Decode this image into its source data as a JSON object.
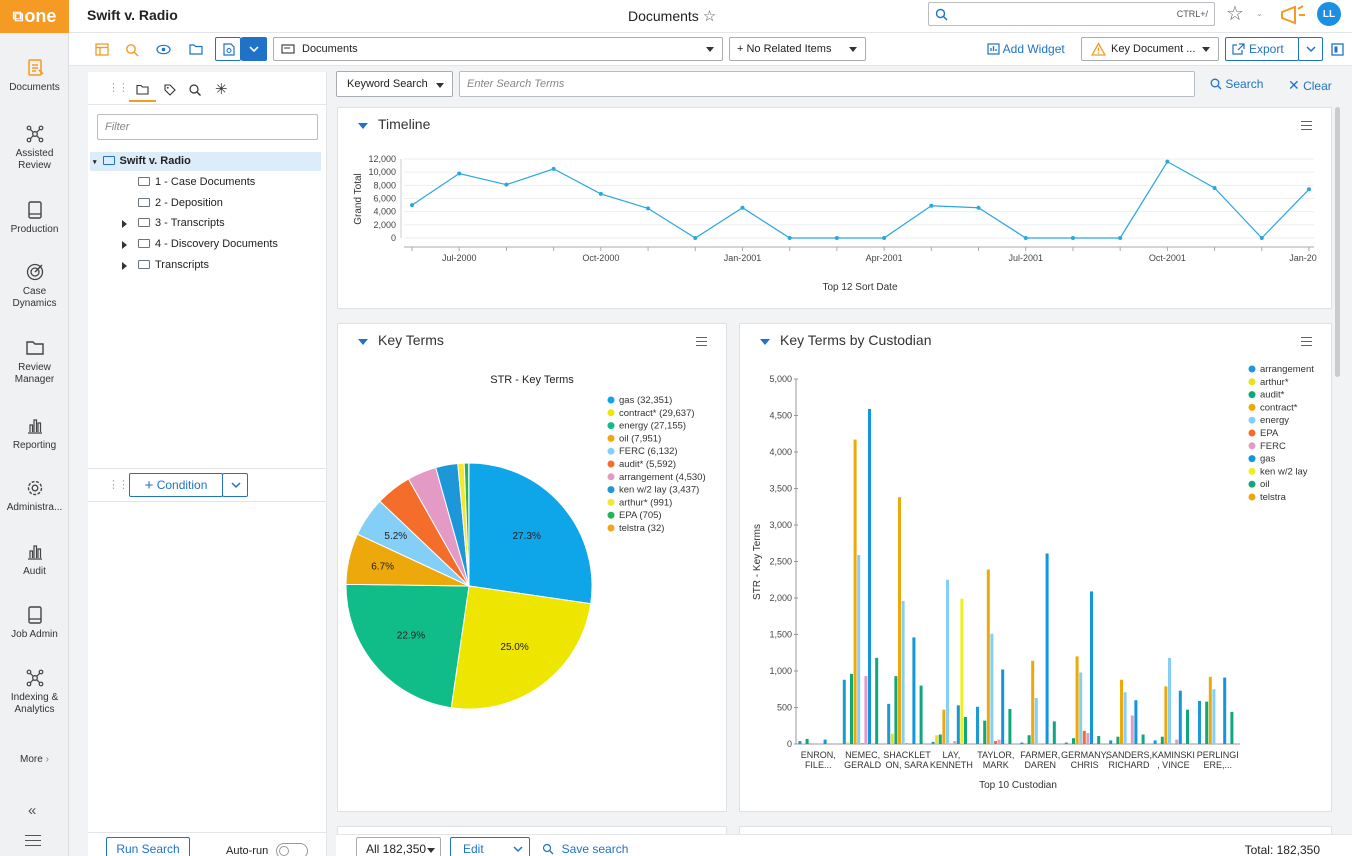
{
  "app": {
    "logo": "one",
    "case_title": "Swift v. Radio",
    "page_title": "Documents",
    "search_shortcut": "CTRL+/",
    "user_initials": "LL"
  },
  "nav": [
    {
      "label": "Documents",
      "icon": "documents-icon"
    },
    {
      "label": "Assisted\nReview",
      "icon": "network-icon"
    },
    {
      "label": "Production",
      "icon": "book-icon"
    },
    {
      "label": "Case\nDynamics",
      "icon": "target-icon"
    },
    {
      "label": "Review\nManager",
      "icon": "folder-icon"
    },
    {
      "label": "Reporting",
      "icon": "bar-chart-icon"
    },
    {
      "label": "Administra...",
      "icon": "gear-icon"
    },
    {
      "label": "Audit",
      "icon": "bar-chart-icon"
    },
    {
      "label": "Job Admin",
      "icon": "book-icon"
    },
    {
      "label": "Indexing &\nAnalytics",
      "icon": "network-icon"
    }
  ],
  "nav_more": "More",
  "toolbar": {
    "view_select": "Documents",
    "related_select": "+ No Related Items",
    "add_widget": "Add Widget",
    "key_document": "Key Document ...",
    "export": "Export"
  },
  "left": {
    "filter_placeholder": "Filter",
    "tree_root": "Swift v. Radio",
    "tree_items": [
      "1 - Case Documents",
      "2 - Deposition",
      "3 - Transcripts",
      "4 - Discovery Documents",
      "Transcripts"
    ],
    "condition": "Condition",
    "run_search": "Run Search",
    "auto_run": "Auto-run"
  },
  "search": {
    "mode": "Keyword Search",
    "placeholder": "Enter Search Terms",
    "search": "Search",
    "clear": "Clear"
  },
  "timeline": {
    "title": "Timeline",
    "ylabel": "Grand Total",
    "xlabel": "Top 12 Sort Date",
    "yticks": [
      "12,000",
      "10,000",
      "8,000",
      "6,000",
      "4,000",
      "2,000",
      "0"
    ],
    "xticks": [
      "Jul-2000",
      "Oct-2000",
      "Jan-2001",
      "Apr-2001",
      "Jul-2001",
      "Oct-2001",
      "Jan-20"
    ]
  },
  "key_terms": {
    "title": "Key Terms",
    "chart_title": "STR - Key Terms",
    "legend": [
      "gas (32,351)",
      "contract* (29,637)",
      "energy (27,155)",
      "oil (7,951)",
      "FERC (6,132)",
      "audit* (5,592)",
      "arrangement (4,530)",
      "ken w/2 lay (3,437)",
      "arthur* (991)",
      "EPA (705)",
      "telstra (32)"
    ],
    "slice_labels": [
      "27.3%",
      "25.0%",
      "22.9%",
      "6.7%",
      "5.2%"
    ]
  },
  "by_custodian": {
    "title": "Key Terms by Custodian",
    "ylabel": "STR - Key Terms",
    "xlabel": "Top 10 Custodian",
    "yticks": [
      "5,000",
      "4,500",
      "4,000",
      "3,500",
      "3,000",
      "2,500",
      "2,000",
      "1,500",
      "1,000",
      "500",
      "0"
    ],
    "categories": [
      [
        "ENRON,",
        "FILE..."
      ],
      [
        "NEMEC,",
        "GERALD"
      ],
      [
        "SHACKLET",
        "ON, SARA"
      ],
      [
        "LAY,",
        "KENNETH"
      ],
      [
        "TAYLOR,",
        "MARK"
      ],
      [
        "FARMER,",
        "DAREN"
      ],
      [
        "GERMANY,",
        "CHRIS"
      ],
      [
        "SANDERS,",
        "RICHARD"
      ],
      [
        "KAMINSKI",
        ", VINCE"
      ],
      [
        "PERLINGI",
        "ERE,..."
      ]
    ],
    "legend": [
      "arrangement",
      "arthur*",
      "audit*",
      "contract*",
      "energy",
      "EPA",
      "FERC",
      "gas",
      "ken w/2 lay",
      "oil",
      "telstra"
    ]
  },
  "bottom": {
    "all": "All 182,350",
    "edit": "Edit",
    "save_search": "Save search",
    "total": "Total: 182,350"
  },
  "chart_data": [
    {
      "type": "line",
      "title": "",
      "xlabel": "Top 12 Sort Date",
      "ylabel": "Grand Total",
      "ylim": [
        0,
        12000
      ],
      "grid": true,
      "x": [
        "Jun-2000",
        "Jul-2000",
        "Aug-2000",
        "Sep-2000",
        "Oct-2000",
        "Nov-2000",
        "Dec-2000",
        "Jan-2001",
        "Feb-2001",
        "Mar-2001",
        "Apr-2001",
        "May-2001",
        "Jun-2001",
        "Jul-2001",
        "Aug-2001",
        "Sep-2001",
        "Oct-2001",
        "Nov-2001",
        "Dec-2001",
        "Jan-2002"
      ],
      "series": [
        {
          "values": [
            5000,
            9800,
            8100,
            10500,
            6700,
            4500,
            0,
            4600,
            0,
            0,
            0,
            4900,
            4600,
            0,
            0,
            0,
            11600,
            7600,
            0,
            7400
          ]
        }
      ],
      "color": "#29a8e0"
    },
    {
      "type": "pie",
      "title": "STR - Key Terms",
      "legend": "right",
      "labels": [
        "gas",
        "contract*",
        "energy",
        "oil",
        "FERC",
        "audit*",
        "arrangement",
        "ken w/2 lay",
        "arthur*",
        "EPA",
        "telstra"
      ],
      "values": [
        32351,
        29637,
        27155,
        7951,
        6132,
        5592,
        4530,
        3437,
        991,
        705,
        32
      ],
      "colors": [
        "#0ea5e9",
        "#eee600",
        "#10bd89",
        "#eda80b",
        "#84cff7",
        "#f56d2b",
        "#e39ac4",
        "#1e97d9",
        "#f3e82c",
        "#22b455",
        "#f0a41e"
      ]
    },
    {
      "type": "bar",
      "title": "",
      "xlabel": "Top 10 Custodian",
      "ylabel": "STR - Key Terms",
      "ylim": [
        0,
        5000
      ],
      "legend": "top-right",
      "categories": [
        "ENRON, FILE...",
        "NEMEC, GERALD",
        "SHACKLETON, SARA",
        "LAY, KENNETH",
        "TAYLOR, MARK",
        "FARMER, DAREN",
        "GERMANY, CHRIS",
        "SANDERS, RICHARD",
        "KAMINSKI, VINCE",
        "PERLINGIERE,..."
      ],
      "series": [
        {
          "name": "arrangement",
          "color": "#1b9ad6",
          "values": [
            40,
            880,
            550,
            30,
            510,
            20,
            20,
            50,
            50,
            590
          ]
        },
        {
          "name": "arthur*",
          "color": "#e7e21a",
          "values": [
            10,
            20,
            140,
            120,
            0,
            0,
            0,
            0,
            0,
            0
          ]
        },
        {
          "name": "audit*",
          "color": "#12a876",
          "values": [
            70,
            960,
            930,
            130,
            320,
            120,
            80,
            100,
            100,
            580
          ]
        },
        {
          "name": "contract*",
          "color": "#eda80b",
          "values": [
            10,
            4170,
            3380,
            470,
            2390,
            1140,
            1200,
            880,
            790,
            920
          ]
        },
        {
          "name": "energy",
          "color": "#84cff7",
          "values": [
            10,
            2590,
            1960,
            2250,
            1510,
            630,
            980,
            710,
            1180,
            750
          ]
        },
        {
          "name": "EPA",
          "color": "#f56d2b",
          "values": [
            0,
            10,
            10,
            0,
            40,
            0,
            180,
            0,
            0,
            0
          ]
        },
        {
          "name": "FERC",
          "color": "#e39ac4",
          "values": [
            0,
            930,
            10,
            40,
            60,
            0,
            150,
            390,
            60,
            0
          ]
        },
        {
          "name": "gas",
          "color": "#1296dc",
          "values": [
            60,
            4590,
            1460,
            530,
            1020,
            2610,
            2090,
            600,
            730,
            910
          ]
        },
        {
          "name": "ken w/2 lay",
          "color": "#eef01c",
          "values": [
            0,
            0,
            0,
            1990,
            10,
            0,
            0,
            0,
            0,
            0
          ]
        },
        {
          "name": "oil",
          "color": "#0fa87e",
          "values": [
            0,
            1180,
            800,
            370,
            480,
            310,
            110,
            130,
            470,
            440
          ]
        },
        {
          "name": "telstra",
          "color": "#eda80b",
          "values": [
            0,
            0,
            0,
            0,
            0,
            0,
            0,
            0,
            0,
            0
          ]
        }
      ]
    }
  ]
}
